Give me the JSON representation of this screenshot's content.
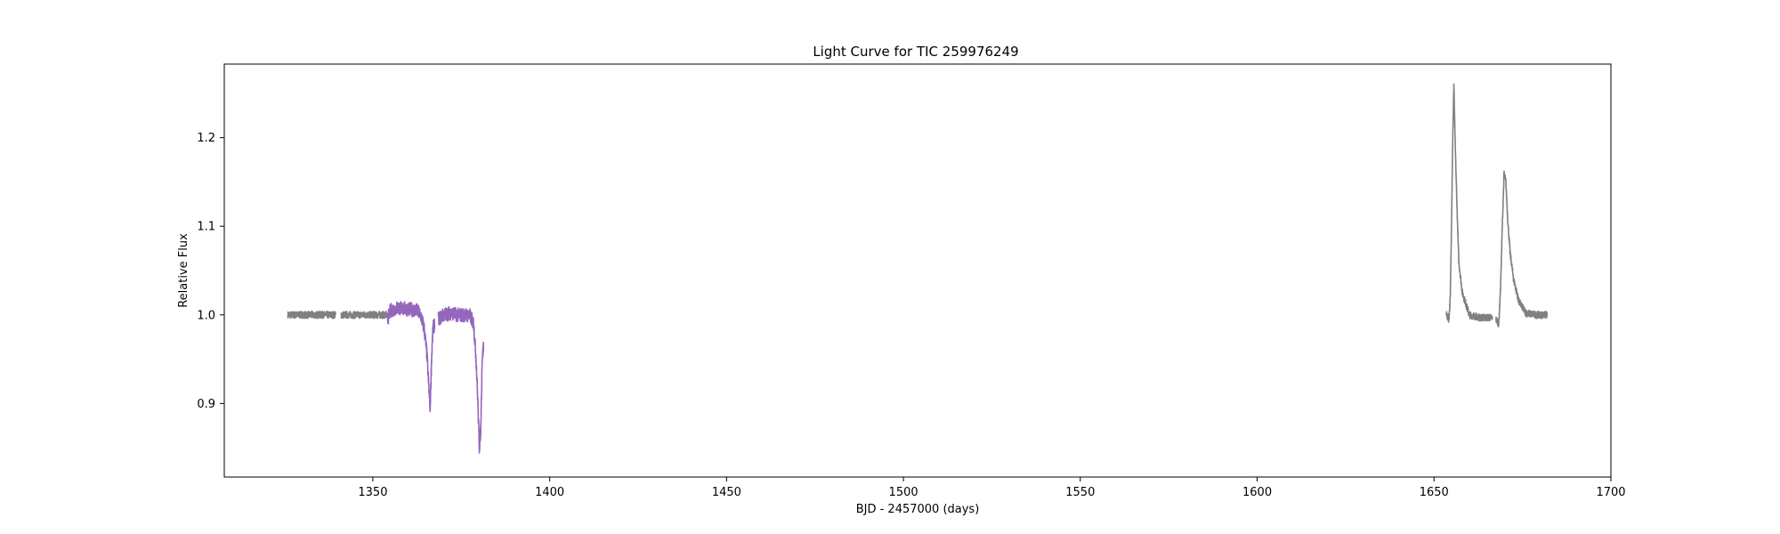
{
  "chart_data": {
    "type": "scatter",
    "title": "Light Curve for TIC 259976249",
    "xlabel": "BJD - 2457000 (days)",
    "ylabel": "Relative Flux",
    "xlim": [
      1308,
      1700
    ],
    "ylim": [
      0.817,
      1.283
    ],
    "x_ticks": [
      1350,
      1400,
      1450,
      1500,
      1550,
      1600,
      1650,
      1700
    ],
    "y_ticks": [
      0.9,
      1.0,
      1.1,
      1.2
    ],
    "x_tick_labels": [
      "1350",
      "1400",
      "1450",
      "1500",
      "1550",
      "1600",
      "1650",
      "1700"
    ],
    "y_tick_labels": [
      "0.9",
      "1.0",
      "1.1",
      "1.2"
    ],
    "grid": false,
    "colors": {
      "gray": "#808080",
      "purple": "#9467bd"
    },
    "series": [
      {
        "color": "#808080",
        "segments": [
          {
            "x": [
              1326,
              1330,
              1335,
              1339.5
            ],
            "y": [
              1.0,
              1.0,
              1.0,
              1.0
            ],
            "scatter": 0.004
          },
          {
            "x": [
              1341,
              1345,
              1350,
              1354
            ],
            "y": [
              1.0,
              1.0,
              1.0,
              1.0
            ],
            "scatter": 0.004
          },
          {
            "x": [
              1653.5,
              1654.2,
              1654.6,
              1655.0,
              1655.3,
              1655.6,
              1656.0,
              1656.5,
              1657.0,
              1658.0,
              1660.0,
              1663.0,
              1666.5
            ],
            "y": [
              1.0,
              0.995,
              1.02,
              1.12,
              1.2,
              1.26,
              1.19,
              1.12,
              1.06,
              1.025,
              1.0,
              0.997,
              0.997
            ],
            "scatter": 0.004
          },
          {
            "x": [
              1667.5,
              1668.3,
              1668.8,
              1669.3,
              1669.8,
              1670.3,
              1670.8,
              1671.5,
              1672.5,
              1674.0,
              1676.0,
              1679.0,
              1682.0
            ],
            "y": [
              0.995,
              0.99,
              1.03,
              1.1,
              1.16,
              1.15,
              1.11,
              1.07,
              1.04,
              1.015,
              1.002,
              1.0,
              1.0
            ],
            "scatter": 0.004
          }
        ]
      },
      {
        "color": "#9467bd",
        "segments": [
          {
            "x": [
              1354,
              1355,
              1357,
              1359,
              1361,
              1362.5,
              1363.5,
              1364.5,
              1365.3,
              1365.8,
              1366.2,
              1366.6,
              1367.0,
              1367.5
            ],
            "y": [
              0.993,
              1.005,
              1.008,
              1.007,
              1.006,
              1.005,
              1.0,
              0.985,
              0.955,
              0.92,
              0.895,
              0.95,
              0.985,
              0.99
            ],
            "scatter": 0.008
          },
          {
            "x": [
              1368.5,
              1370,
              1372,
              1374,
              1376,
              1377.5,
              1378.5,
              1379.2,
              1379.7,
              1380.1,
              1380.5,
              1380.9,
              1381.3
            ],
            "y": [
              0.995,
              1.0,
              1.002,
              1.0,
              1.0,
              0.999,
              0.99,
              0.95,
              0.9,
              0.85,
              0.87,
              0.95,
              0.965
            ],
            "scatter": 0.008
          }
        ]
      }
    ]
  }
}
